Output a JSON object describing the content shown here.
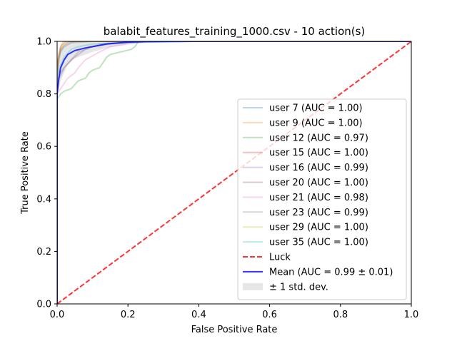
{
  "chart_data": {
    "type": "line",
    "title": "balabit_features_training_1000.csv - 10 action(s)",
    "xlabel": "False Positive Rate",
    "ylabel": "True Positive Rate",
    "xlim": [
      0.0,
      1.0
    ],
    "ylim": [
      0.0,
      1.0
    ],
    "x_ticks": [
      "0.0",
      "0.2",
      "0.4",
      "0.6",
      "0.8",
      "1.0"
    ],
    "y_ticks": [
      "0.0",
      "0.2",
      "0.4",
      "0.6",
      "0.8",
      "1.0"
    ],
    "grid": false,
    "legend_position": "lower-right",
    "series": [
      {
        "name": "user 7 (AUC = 1.00)",
        "color": "#1f77b4",
        "alpha": 0.3,
        "x": [
          0,
          0,
          0.005,
          0.01,
          0.02,
          0.04,
          0.1,
          1.0
        ],
        "y": [
          0,
          0.86,
          0.93,
          0.96,
          0.98,
          0.995,
          1.0,
          1.0
        ]
      },
      {
        "name": "user 9 (AUC = 1.00)",
        "color": "#ff7f0e",
        "alpha": 0.3,
        "x": [
          0,
          0,
          0.005,
          0.01,
          0.015,
          0.02,
          1.0
        ],
        "y": [
          0,
          0.9,
          0.95,
          0.98,
          0.995,
          1.0,
          1.0
        ]
      },
      {
        "name": "user 12 (AUC = 0.97)",
        "color": "#2ca02c",
        "alpha": 0.3,
        "x": [
          0,
          0,
          0.005,
          0.01,
          0.02,
          0.04,
          0.06,
          0.08,
          0.09,
          0.1,
          0.12,
          0.13,
          0.14,
          0.15,
          0.18,
          0.21,
          0.22,
          0.23,
          1.0
        ],
        "y": [
          0,
          0.78,
          0.79,
          0.8,
          0.81,
          0.82,
          0.85,
          0.86,
          0.88,
          0.89,
          0.9,
          0.92,
          0.94,
          0.95,
          0.96,
          0.97,
          0.98,
          1.0,
          1.0
        ]
      },
      {
        "name": "user 15 (AUC = 1.00)",
        "color": "#d62728",
        "alpha": 0.3,
        "x": [
          0,
          0,
          0.005,
          0.01,
          0.02,
          0.03,
          0.05,
          1.0
        ],
        "y": [
          0,
          0.88,
          0.94,
          0.97,
          0.985,
          0.995,
          1.0,
          1.0
        ]
      },
      {
        "name": "user 16 (AUC = 0.99)",
        "color": "#9467bd",
        "alpha": 0.3,
        "x": [
          0,
          0,
          0.01,
          0.02,
          0.04,
          0.06,
          0.08,
          0.12,
          0.2,
          1.0
        ],
        "y": [
          0,
          0.85,
          0.88,
          0.9,
          0.93,
          0.95,
          0.97,
          0.99,
          1.0,
          1.0
        ]
      },
      {
        "name": "user 20 (AUC = 1.00)",
        "color": "#8c564b",
        "alpha": 0.3,
        "x": [
          0,
          0,
          0.005,
          0.01,
          0.02,
          0.03,
          1.0
        ],
        "y": [
          0,
          0.9,
          0.95,
          0.98,
          0.995,
          1.0,
          1.0
        ]
      },
      {
        "name": "user 21 (AUC = 0.98)",
        "color": "#e377c2",
        "alpha": 0.3,
        "x": [
          0,
          0,
          0.01,
          0.02,
          0.03,
          0.05,
          0.06,
          0.08,
          0.12,
          0.15,
          0.2,
          0.25,
          1.0
        ],
        "y": [
          0,
          0.8,
          0.82,
          0.84,
          0.86,
          0.88,
          0.9,
          0.93,
          0.96,
          0.98,
          0.99,
          1.0,
          1.0
        ]
      },
      {
        "name": "user 23 (AUC = 0.99)",
        "color": "#7f7f7f",
        "alpha": 0.3,
        "x": [
          0,
          0,
          0.01,
          0.02,
          0.04,
          0.06,
          0.1,
          0.15,
          0.22,
          1.0
        ],
        "y": [
          0,
          0.84,
          0.87,
          0.9,
          0.93,
          0.96,
          0.98,
          0.99,
          1.0,
          1.0
        ]
      },
      {
        "name": "user 29 (AUC = 1.00)",
        "color": "#bcbd22",
        "alpha": 0.3,
        "x": [
          0,
          0,
          0.005,
          0.01,
          0.02,
          0.04,
          1.0
        ],
        "y": [
          0,
          0.89,
          0.94,
          0.97,
          0.99,
          1.0,
          1.0
        ]
      },
      {
        "name": "user 35 (AUC = 1.00)",
        "color": "#17becf",
        "alpha": 0.3,
        "x": [
          0,
          0,
          0.01,
          0.02,
          0.04,
          0.06,
          0.1,
          0.2,
          0.38,
          1.0
        ],
        "y": [
          0,
          0.87,
          0.91,
          0.94,
          0.97,
          0.98,
          0.99,
          0.995,
          1.0,
          1.0
        ]
      },
      {
        "name": "Luck",
        "color": "#ff0000",
        "alpha": 0.8,
        "dashed": true,
        "width": 2,
        "x": [
          0,
          1
        ],
        "y": [
          0,
          1
        ]
      },
      {
        "name": "Mean (AUC = 0.99 ± 0.01)",
        "color": "#0000ff",
        "alpha": 0.8,
        "width": 2,
        "x": [
          0,
          0.0,
          0.005,
          0.01,
          0.02,
          0.03,
          0.05,
          0.08,
          0.1,
          0.14,
          0.2,
          0.25,
          0.38,
          1.0
        ],
        "y": [
          0,
          0.8,
          0.86,
          0.9,
          0.93,
          0.95,
          0.965,
          0.975,
          0.98,
          0.99,
          0.997,
          0.999,
          1.0,
          1.0
        ]
      }
    ],
    "band": {
      "name": "± 1 std. dev.",
      "color": "#808080",
      "alpha": 0.2,
      "x": [
        0,
        0.005,
        0.01,
        0.02,
        0.03,
        0.05,
        0.08,
        0.1,
        0.14,
        0.2,
        0.25,
        0.38,
        1.0
      ],
      "lower": [
        0.8,
        0.82,
        0.85,
        0.88,
        0.91,
        0.935,
        0.95,
        0.96,
        0.975,
        0.99,
        0.995,
        1.0,
        1.0
      ],
      "upper": [
        0.92,
        0.95,
        0.97,
        0.98,
        0.99,
        1.0,
        1.0,
        1.0,
        1.0,
        1.0,
        1.0,
        1.0,
        1.0
      ]
    }
  }
}
